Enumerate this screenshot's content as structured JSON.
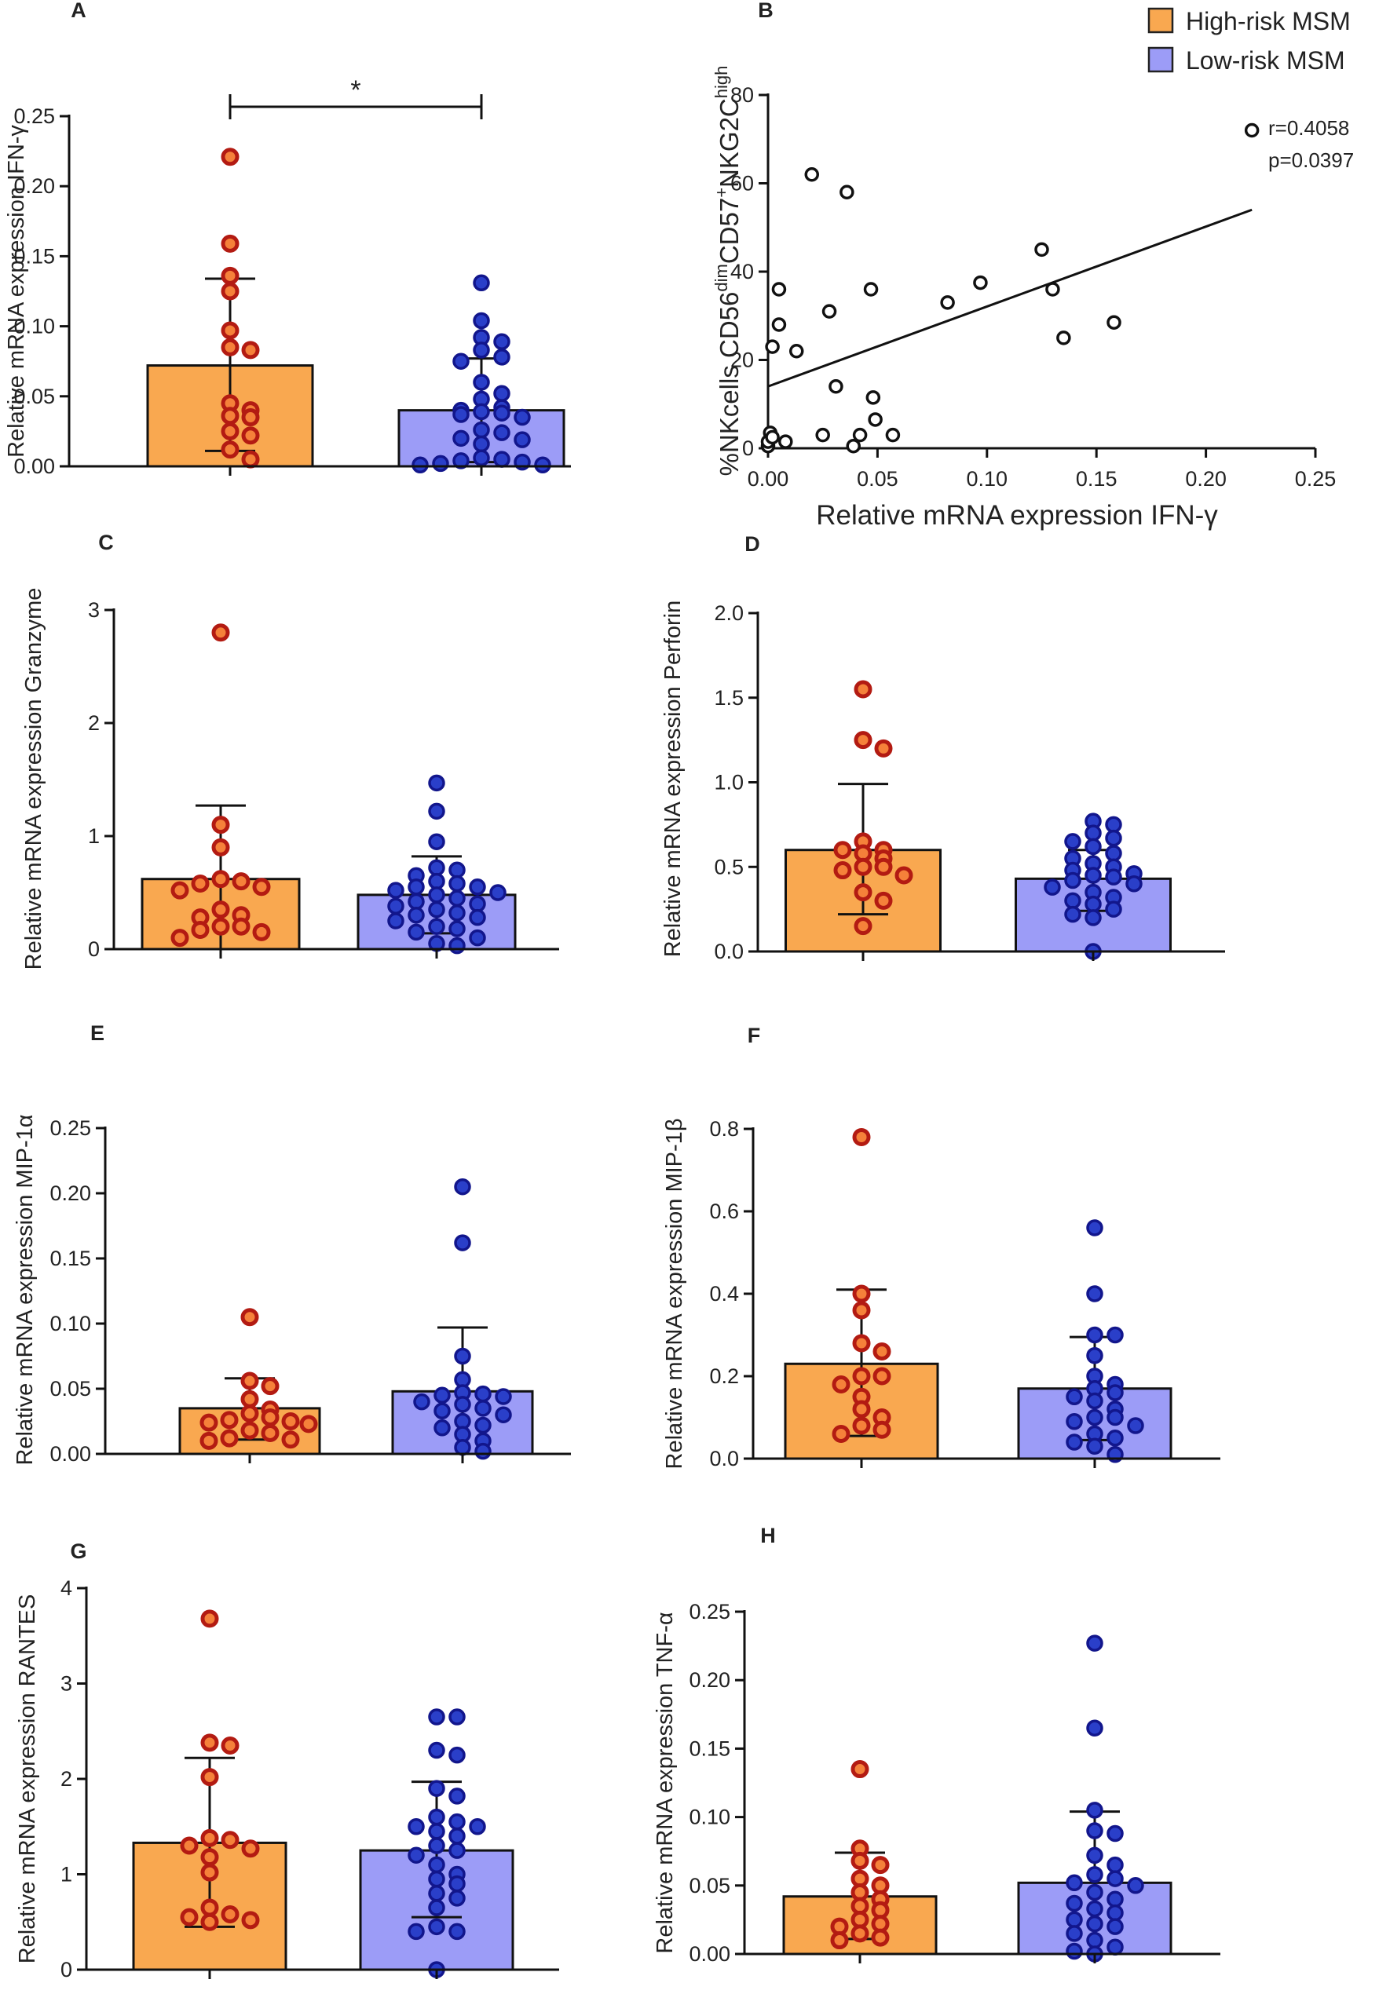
{
  "legend": {
    "high_label": "High-risk MSM",
    "low_label": "Low-risk MSM",
    "high_color": "#F9A850",
    "low_color": "#9C9CF7"
  },
  "colors": {
    "high_point_fill": "#F5813A",
    "high_point_stroke": "#B31B12",
    "low_point_fill": "#2A3FC9",
    "low_point_stroke": "#12168C"
  },
  "chart_data": [
    {
      "id": "A",
      "type": "bar",
      "letter": "A",
      "ylabel": "Relative mRNA expression IFN-γ",
      "yticks": [
        "0.00",
        "0.05",
        "0.10",
        "0.15",
        "0.20",
        "0.25"
      ],
      "ylim": [
        0,
        0.25
      ],
      "categories": [
        "High-risk MSM",
        "Low-risk MSM"
      ],
      "significance": "*",
      "series": [
        {
          "name": "High-risk MSM",
          "mean": 0.072,
          "error_low": 0.011,
          "error_high": 0.134,
          "points": [
            0.221,
            0.159,
            0.136,
            0.125,
            0.097,
            0.085,
            0.083,
            0.045,
            0.04,
            0.036,
            0.035,
            0.025,
            0.022,
            0.012,
            0.005
          ]
        },
        {
          "name": "Low-risk MSM",
          "mean": 0.04,
          "error_low": 0.003,
          "error_high": 0.077,
          "points": [
            0.131,
            0.104,
            0.092,
            0.089,
            0.083,
            0.078,
            0.075,
            0.06,
            0.052,
            0.048,
            0.042,
            0.04,
            0.039,
            0.038,
            0.037,
            0.035,
            0.026,
            0.024,
            0.02,
            0.019,
            0.016,
            0.006,
            0.005,
            0.004,
            0.003,
            0.002,
            0.001,
            0.001
          ]
        }
      ]
    },
    {
      "id": "B",
      "type": "scatter",
      "letter": "B",
      "xlabel": "Relative mRNA expression IFN-γ",
      "ylabel_parts": [
        "%NKcells CD56",
        "dim",
        "CD57",
        "+",
        "NKG2C",
        "high"
      ],
      "xticks": [
        "0.00",
        "0.05",
        "0.10",
        "0.15",
        "0.20",
        "0.25"
      ],
      "yticks": [
        "0",
        "20",
        "40",
        "60",
        "80"
      ],
      "xlim": [
        0,
        0.25
      ],
      "ylim": [
        0,
        80
      ],
      "r_label": "r=0.4058",
      "p_label": "p=0.0397",
      "fit_line": {
        "x": [
          0,
          0.221
        ],
        "y": [
          14,
          54
        ]
      },
      "points": [
        [
          0.0,
          0.5
        ],
        [
          0.0,
          1.5
        ],
        [
          0.001,
          3.5
        ],
        [
          0.002,
          2.5
        ],
        [
          0.002,
          23
        ],
        [
          0.005,
          28
        ],
        [
          0.005,
          36
        ],
        [
          0.008,
          1.5
        ],
        [
          0.013,
          22
        ],
        [
          0.02,
          62
        ],
        [
          0.025,
          3
        ],
        [
          0.028,
          31
        ],
        [
          0.031,
          14
        ],
        [
          0.036,
          58
        ],
        [
          0.039,
          0.5
        ],
        [
          0.042,
          3
        ],
        [
          0.047,
          36
        ],
        [
          0.048,
          11.5
        ],
        [
          0.049,
          6.5
        ],
        [
          0.057,
          3
        ],
        [
          0.082,
          33
        ],
        [
          0.097,
          37.5
        ],
        [
          0.125,
          45
        ],
        [
          0.13,
          36
        ],
        [
          0.135,
          25
        ],
        [
          0.158,
          28.5
        ],
        [
          0.221,
          72
        ]
      ]
    },
    {
      "id": "C",
      "type": "bar",
      "letter": "C",
      "ylabel": "Relative mRNA expression Granzyme",
      "yticks": [
        "0",
        "1",
        "2",
        "3"
      ],
      "ylim": [
        0,
        3
      ],
      "categories": [
        "High-risk MSM",
        "Low-risk MSM"
      ],
      "series": [
        {
          "name": "High-risk MSM",
          "mean": 0.62,
          "error_low": 0.0,
          "error_high": 1.27,
          "points": [
            2.8,
            1.1,
            0.9,
            0.62,
            0.6,
            0.58,
            0.55,
            0.52,
            0.35,
            0.3,
            0.28,
            0.2,
            0.2,
            0.17,
            0.15,
            0.1
          ]
        },
        {
          "name": "Low-risk MSM",
          "mean": 0.48,
          "error_low": 0.14,
          "error_high": 0.82,
          "points": [
            1.47,
            1.22,
            0.95,
            0.72,
            0.7,
            0.65,
            0.6,
            0.58,
            0.55,
            0.55,
            0.52,
            0.5,
            0.48,
            0.45,
            0.42,
            0.4,
            0.38,
            0.35,
            0.32,
            0.3,
            0.28,
            0.25,
            0.2,
            0.18,
            0.15,
            0.1,
            0.05,
            0.03
          ]
        }
      ]
    },
    {
      "id": "D",
      "type": "bar",
      "letter": "D",
      "ylabel": "Relative mRNA expression Perforin",
      "yticks": [
        "0.0",
        "0.5",
        "1.0",
        "1.5",
        "2.0"
      ],
      "ylim": [
        0,
        2
      ],
      "categories": [
        "High-risk MSM",
        "Low-risk MSM"
      ],
      "series": [
        {
          "name": "High-risk MSM",
          "mean": 0.6,
          "error_low": 0.22,
          "error_high": 0.99,
          "points": [
            1.55,
            1.25,
            1.2,
            0.65,
            0.6,
            0.6,
            0.58,
            0.55,
            0.5,
            0.5,
            0.48,
            0.45,
            0.35,
            0.3,
            0.15
          ]
        },
        {
          "name": "Low-risk MSM",
          "mean": 0.43,
          "error_low": 0.24,
          "error_high": 0.6,
          "points": [
            0.77,
            0.75,
            0.7,
            0.67,
            0.65,
            0.62,
            0.58,
            0.55,
            0.52,
            0.5,
            0.48,
            0.46,
            0.45,
            0.44,
            0.42,
            0.4,
            0.38,
            0.35,
            0.32,
            0.3,
            0.28,
            0.25,
            0.22,
            0.2,
            0.0
          ]
        }
      ]
    },
    {
      "id": "E",
      "type": "bar",
      "letter": "E",
      "ylabel": "Relative mRNA expression MIP-1α",
      "yticks": [
        "0.00",
        "0.05",
        "0.10",
        "0.15",
        "0.20",
        "0.25"
      ],
      "ylim": [
        0,
        0.25
      ],
      "categories": [
        "High-risk MSM",
        "Low-risk MSM"
      ],
      "series": [
        {
          "name": "High-risk MSM",
          "mean": 0.035,
          "error_low": 0.011,
          "error_high": 0.058,
          "points": [
            0.105,
            0.056,
            0.052,
            0.042,
            0.034,
            0.031,
            0.028,
            0.026,
            0.025,
            0.024,
            0.023,
            0.018,
            0.016,
            0.012,
            0.011,
            0.01
          ]
        },
        {
          "name": "Low-risk MSM",
          "mean": 0.048,
          "error_low": 0.0,
          "error_high": 0.097,
          "points": [
            0.205,
            0.162,
            0.075,
            0.057,
            0.047,
            0.046,
            0.045,
            0.044,
            0.04,
            0.038,
            0.035,
            0.033,
            0.03,
            0.025,
            0.022,
            0.02,
            0.015,
            0.01,
            0.005,
            0.002
          ]
        }
      ]
    },
    {
      "id": "F",
      "type": "bar",
      "letter": "F",
      "ylabel": "Relative mRNA expression MIP-1β",
      "yticks": [
        "0.0",
        "0.2",
        "0.4",
        "0.6",
        "0.8"
      ],
      "ylim": [
        0,
        0.8
      ],
      "categories": [
        "High-risk MSM",
        "Low-risk MSM"
      ],
      "series": [
        {
          "name": "High-risk MSM",
          "mean": 0.23,
          "error_low": 0.055,
          "error_high": 0.41,
          "points": [
            0.78,
            0.4,
            0.36,
            0.28,
            0.26,
            0.2,
            0.2,
            0.18,
            0.15,
            0.12,
            0.1,
            0.08,
            0.07,
            0.06
          ]
        },
        {
          "name": "Low-risk MSM",
          "mean": 0.17,
          "error_low": 0.045,
          "error_high": 0.295,
          "points": [
            0.56,
            0.4,
            0.3,
            0.3,
            0.25,
            0.2,
            0.18,
            0.17,
            0.16,
            0.15,
            0.14,
            0.12,
            0.1,
            0.1,
            0.09,
            0.08,
            0.06,
            0.05,
            0.04,
            0.03,
            0.01
          ]
        }
      ]
    },
    {
      "id": "G",
      "type": "bar",
      "letter": "G",
      "ylabel": "Relative mRNA expression RANTES",
      "yticks": [
        "0",
        "1",
        "2",
        "3",
        "4"
      ],
      "ylim": [
        0,
        4
      ],
      "categories": [
        "High-risk MSM",
        "Low-risk MSM"
      ],
      "series": [
        {
          "name": "High-risk MSM",
          "mean": 1.33,
          "error_low": 0.45,
          "error_high": 2.22,
          "points": [
            3.68,
            2.38,
            2.35,
            2.02,
            1.38,
            1.36,
            1.3,
            1.27,
            1.18,
            1.02,
            0.65,
            0.58,
            0.55,
            0.52,
            0.5
          ]
        },
        {
          "name": "Low-risk MSM",
          "mean": 1.25,
          "error_low": 0.55,
          "error_high": 1.97,
          "points": [
            2.65,
            2.65,
            2.3,
            2.25,
            1.9,
            1.82,
            1.6,
            1.55,
            1.5,
            1.5,
            1.45,
            1.4,
            1.3,
            1.25,
            1.2,
            1.1,
            1.0,
            0.95,
            0.9,
            0.8,
            0.75,
            0.65,
            0.45,
            0.4,
            0.4,
            0.0
          ]
        }
      ]
    },
    {
      "id": "H",
      "type": "bar",
      "letter": "H",
      "ylabel": "Relative mRNA expression TNF-α",
      "yticks": [
        "0.00",
        "0.05",
        "0.10",
        "0.15",
        "0.20",
        "0.25"
      ],
      "ylim": [
        0,
        0.25
      ],
      "categories": [
        "High-risk MSM",
        "Low-risk MSM"
      ],
      "series": [
        {
          "name": "High-risk MSM",
          "mean": 0.042,
          "error_low": 0.011,
          "error_high": 0.074,
          "points": [
            0.135,
            0.077,
            0.068,
            0.065,
            0.055,
            0.05,
            0.045,
            0.04,
            0.035,
            0.032,
            0.025,
            0.022,
            0.02,
            0.015,
            0.012,
            0.01
          ]
        },
        {
          "name": "Low-risk MSM",
          "mean": 0.052,
          "error_low": 0.0,
          "error_high": 0.104,
          "points": [
            0.227,
            0.165,
            0.105,
            0.09,
            0.088,
            0.072,
            0.065,
            0.058,
            0.055,
            0.052,
            0.05,
            0.045,
            0.04,
            0.037,
            0.033,
            0.03,
            0.025,
            0.022,
            0.02,
            0.015,
            0.01,
            0.005,
            0.002,
            0.0
          ]
        }
      ]
    }
  ]
}
